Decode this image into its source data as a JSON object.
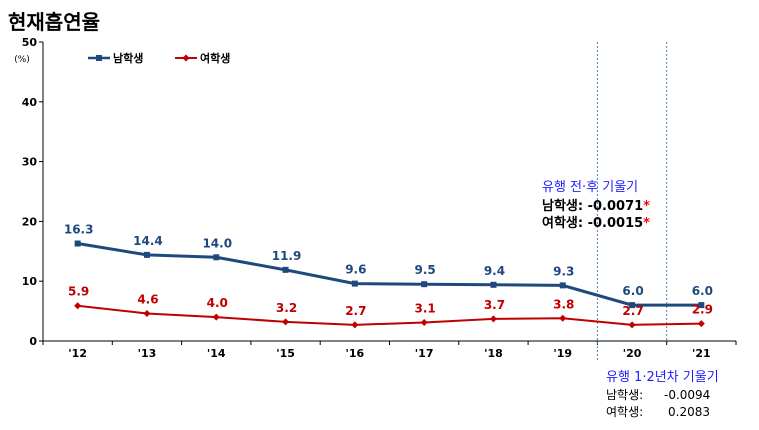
{
  "chart_data": {
    "type": "line",
    "title": "현재흡연율",
    "y_unit": "(%)",
    "ylim": [
      0,
      50
    ],
    "yticks": [
      0,
      10,
      20,
      30,
      40,
      50
    ],
    "categories": [
      "'12",
      "'13",
      "'14",
      "'15",
      "'16",
      "'17",
      "'18",
      "'19",
      "'20",
      "'21"
    ],
    "series": [
      {
        "name": "남학생",
        "color": "#1f497d",
        "values": [
          16.3,
          14.4,
          14.0,
          11.9,
          9.6,
          9.5,
          9.4,
          9.3,
          6.0,
          6.0
        ],
        "labels": [
          "16.3",
          "14.4",
          "14.0",
          "11.9",
          "9.6",
          "9.5",
          "9.4",
          "9.3",
          "6.0",
          "6.0"
        ]
      },
      {
        "name": "여학생",
        "color": "#c00000",
        "values": [
          5.9,
          4.6,
          4.0,
          3.2,
          2.7,
          3.1,
          3.7,
          3.8,
          2.7,
          2.9
        ],
        "labels": [
          "5.9",
          "4.6",
          "4.0",
          "3.2",
          "2.7",
          "3.1",
          "3.7",
          "3.8",
          "2.7",
          "2.9"
        ]
      }
    ],
    "grid": false,
    "legend_position": "top-left",
    "annotations": {
      "before_after": {
        "title": "유행 전·후 기울기",
        "male": "남학생: -0.0071",
        "female": "여학생: -0.0015",
        "star": "*",
        "star_color": "#ff0000"
      },
      "pandemic_years": {
        "title": "유행 1·2년차 기울기",
        "male_label": "남학생:",
        "male_value": "-0.0094",
        "female_label": "여학생:",
        "female_value": "0.2083"
      }
    },
    "annotation_color": "#2020ff",
    "divider_color": "#4f81bd"
  }
}
